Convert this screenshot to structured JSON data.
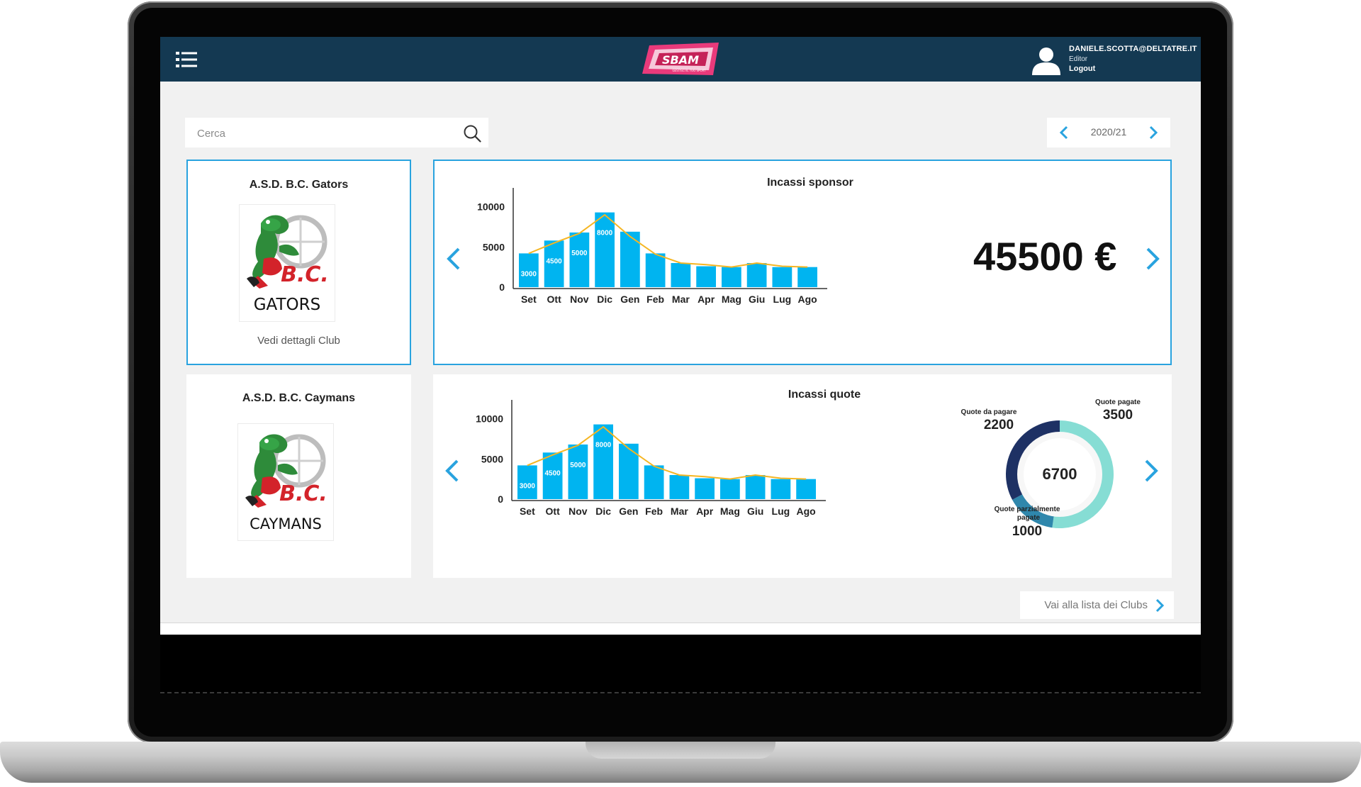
{
  "header": {
    "brand": "SBAM",
    "brand_tagline": "GESTISCI IL TUO SPORT",
    "user_email": "DANIELE.SCOTTA@DELTATRE.IT",
    "user_role": "Editor",
    "logout_label": "Logout"
  },
  "search": {
    "placeholder": "Cerca"
  },
  "season": {
    "label": "2020/21"
  },
  "clubs": [
    {
      "name": "A.S.D. B.C. Gators",
      "logo_text": "GATORS",
      "logo_initials": "B.C.",
      "link_label": "Vedi dettagli Club"
    },
    {
      "name": "A.S.D. B.C. Caymans",
      "logo_text": "CAYMANS",
      "logo_initials": "B.C."
    }
  ],
  "sponsor": {
    "title": "Incassi sponsor",
    "total": "45500 €"
  },
  "quote": {
    "title": "Incassi quote",
    "total": "6700",
    "unpaid_label": "Quote da pagare",
    "unpaid_value": "2200",
    "paid_label": "Quote pagate",
    "paid_value": "3500",
    "partial_label_1": "Quote parzialmente",
    "partial_label_2": "pagate",
    "partial_value": "1000"
  },
  "footer": {
    "clubs_link_label": "Vai alla lista dei Clubs"
  },
  "colors": {
    "accent": "#29a3df",
    "bar": "#00b4f0",
    "line": "#f5b623",
    "header": "#143952",
    "donut_paid": "#86ddd4",
    "donut_partial": "#2f87ac",
    "donut_unpaid": "#1e3164"
  },
  "chart_data": [
    {
      "type": "bar",
      "title": "Incassi sponsor",
      "categories": [
        "Set",
        "Ott",
        "Nov",
        "Dic",
        "Gen",
        "Feb",
        "Mar",
        "Apr",
        "Mag",
        "Giu",
        "Lug",
        "Ago"
      ],
      "series": [
        {
          "values": [
            4200,
            5800,
            6800,
            9300,
            6900,
            4200,
            3000,
            2600,
            2500,
            3000,
            2500,
            2500
          ]
        },
        {
          "values": [
            4200,
            5500,
            6700,
            9000,
            6300,
            4100,
            3000,
            2800,
            2500,
            3000,
            2600,
            2500
          ]
        }
      ],
      "data_labels": [
        "3000",
        "4500",
        "5000",
        "8000",
        "",
        "",
        "",
        "",
        "",
        "",
        "",
        ""
      ],
      "yticks": [
        0,
        5000,
        10000
      ],
      "ylim": [
        0,
        12000
      ]
    },
    {
      "type": "bar",
      "title": "Incassi quote",
      "categories": [
        "Set",
        "Ott",
        "Nov",
        "Dic",
        "Gen",
        "Feb",
        "Mar",
        "Apr",
        "Mag",
        "Giu",
        "Lug",
        "Ago"
      ],
      "series": [
        {
          "values": [
            4200,
            5800,
            6800,
            9300,
            6900,
            4200,
            3000,
            2600,
            2500,
            3000,
            2500,
            2500
          ]
        },
        {
          "values": [
            4200,
            5500,
            6700,
            9000,
            6300,
            4100,
            3000,
            2800,
            2500,
            3000,
            2600,
            2500
          ]
        }
      ],
      "data_labels": [
        "3000",
        "4500",
        "5000",
        "8000",
        "",
        "",
        "",
        "",
        "",
        "",
        "",
        ""
      ],
      "yticks": [
        0,
        5000,
        10000
      ],
      "ylim": [
        0,
        12000
      ]
    },
    {
      "type": "pie",
      "title": "",
      "categories": [
        "Quote pagate",
        "Quote parzialmente pagate",
        "Quote da pagare"
      ],
      "values": [
        3500,
        1000,
        2200
      ],
      "center_label": "6700"
    }
  ]
}
